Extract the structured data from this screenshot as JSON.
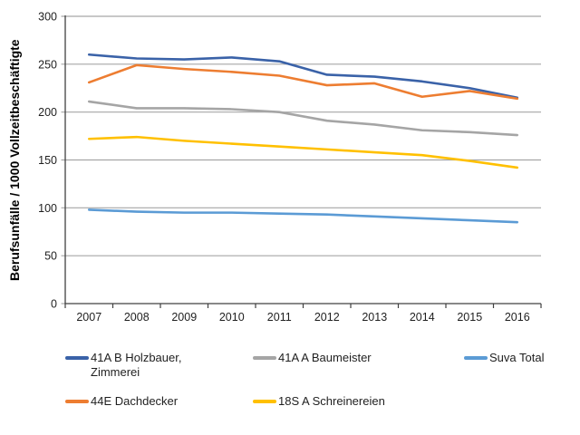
{
  "chart_data": {
    "type": "line",
    "ylabel": "Berufsunfälle / 1000 Vollzeitbeschäftigte",
    "xlabel": "",
    "categories": [
      "2007",
      "2008",
      "2009",
      "2010",
      "2011",
      "2012",
      "2013",
      "2014",
      "2015",
      "2016"
    ],
    "ylim": [
      0,
      300
    ],
    "yticks": [
      0,
      50,
      100,
      150,
      200,
      250,
      300
    ],
    "grid": "horizontal",
    "legend_position": "bottom",
    "colors": {
      "axis": "#404040",
      "grid": "#A6A6A6",
      "text": "#1F1F1F"
    },
    "series": [
      {
        "name": "41A B Holzbauer, Zimmerei",
        "color": "#3A62A8",
        "values": [
          260,
          256,
          255,
          257,
          253,
          239,
          237,
          232,
          225,
          215
        ]
      },
      {
        "name": "41A A Baumeister",
        "color": "#A5A5A5",
        "values": [
          211,
          204,
          204,
          203,
          200,
          191,
          187,
          181,
          179,
          176
        ]
      },
      {
        "name": "Suva Total",
        "color": "#5B9BD5",
        "values": [
          98,
          96,
          95,
          95,
          94,
          93,
          91,
          89,
          87,
          85
        ]
      },
      {
        "name": "44E Dachdecker",
        "color": "#ED7D31",
        "values": [
          231,
          249,
          245,
          242,
          238,
          228,
          230,
          216,
          222,
          214
        ]
      },
      {
        "name": "18S A Schreinereien",
        "color": "#FFC000",
        "values": [
          172,
          174,
          170,
          167,
          164,
          161,
          158,
          155,
          149,
          142
        ]
      }
    ]
  }
}
